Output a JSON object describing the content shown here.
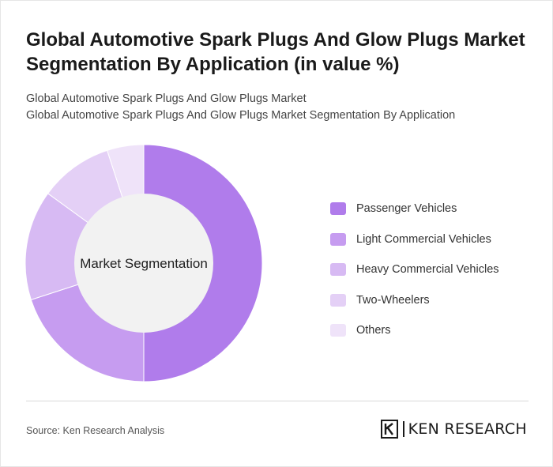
{
  "header": {
    "title": "Global Automotive Spark Plugs And Glow Plugs Market Segmentation By Application (in value %)",
    "subtitle_line1": "Global Automotive Spark Plugs And Glow Plugs Market",
    "subtitle_line2": "Global Automotive Spark Plugs And Glow Plugs Market Segmentation By Application"
  },
  "chart_data": {
    "type": "pie",
    "center_label": "Market Segmentation",
    "legend_position": "right",
    "categories": [
      "Passenger Vehicles",
      "Light Commercial Vehicles",
      "Heavy Commercial Vehicles",
      "Two-Wheelers",
      "Others"
    ],
    "values": [
      50,
      20,
      15,
      10,
      5
    ],
    "colors": [
      "#b07ceb",
      "#c69cf0",
      "#d7baf3",
      "#e4d0f6",
      "#efe3f9"
    ]
  },
  "footer": {
    "source": "Source: Ken Research Analysis",
    "logo_text": "KEN RESEARCH"
  }
}
